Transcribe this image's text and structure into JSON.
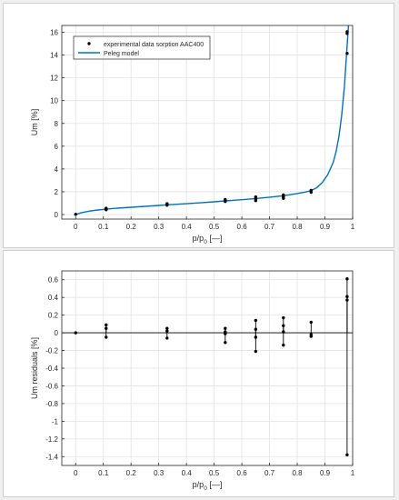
{
  "chart_data": [
    {
      "type": "scatter",
      "xlabel_main": "p/p",
      "xlabel_sub": "0",
      "xlabel_unit": " [—]",
      "ylabel": "Um [%]",
      "xlim": [
        -0.05,
        1.0
      ],
      "ylim": [
        -0.4,
        16.6
      ],
      "xticks": [
        0,
        0.1,
        0.2,
        0.3,
        0.4,
        0.5,
        0.6,
        0.7,
        0.8,
        0.9,
        1
      ],
      "xtick_labels": [
        "0",
        "0.1",
        "0.2",
        "0.3",
        "0.4",
        "0.5",
        "0.6",
        "0.7",
        "0.8",
        "0.9",
        "1"
      ],
      "yticks": [
        0,
        2,
        4,
        6,
        8,
        10,
        12,
        14,
        16
      ],
      "ytick_labels": [
        "0",
        "2",
        "4",
        "6",
        "8",
        "10",
        "12",
        "14",
        "16"
      ],
      "grid": true,
      "legend": {
        "position": "top-left",
        "entries": [
          {
            "label": "experimental data sorption AAC400",
            "marker": "dot",
            "color": "#000000"
          },
          {
            "label": "Peleg model",
            "marker": "line",
            "color": "#0072BD"
          }
        ]
      },
      "series": [
        {
          "name": "experimental data sorption AAC400",
          "points": [
            [
              0,
              0.02
            ],
            [
              0.11,
              0.42
            ],
            [
              0.11,
              0.48
            ],
            [
              0.11,
              0.55
            ],
            [
              0.33,
              0.82
            ],
            [
              0.33,
              0.88
            ],
            [
              0.33,
              0.95
            ],
            [
              0.54,
              1.15
            ],
            [
              0.54,
              1.22
            ],
            [
              0.54,
              1.32
            ],
            [
              0.65,
              1.22
            ],
            [
              0.65,
              1.38
            ],
            [
              0.65,
              1.55
            ],
            [
              0.75,
              1.42
            ],
            [
              0.75,
              1.55
            ],
            [
              0.75,
              1.72
            ],
            [
              0.85,
              1.95
            ],
            [
              0.85,
              2.12
            ],
            [
              0.98,
              14.15
            ],
            [
              0.98,
              15.9
            ],
            [
              0.98,
              16.05
            ]
          ]
        },
        {
          "name": "Peleg model",
          "curve": [
            [
              0,
              0.0
            ],
            [
              0.02,
              0.15
            ],
            [
              0.05,
              0.3
            ],
            [
              0.08,
              0.4
            ],
            [
              0.11,
              0.47
            ],
            [
              0.15,
              0.56
            ],
            [
              0.2,
              0.64
            ],
            [
              0.25,
              0.72
            ],
            [
              0.3,
              0.8
            ],
            [
              0.33,
              0.85
            ],
            [
              0.4,
              0.95
            ],
            [
              0.45,
              1.03
            ],
            [
              0.5,
              1.12
            ],
            [
              0.54,
              1.2
            ],
            [
              0.6,
              1.3
            ],
            [
              0.65,
              1.4
            ],
            [
              0.7,
              1.52
            ],
            [
              0.75,
              1.65
            ],
            [
              0.8,
              1.84
            ],
            [
              0.83,
              1.98
            ],
            [
              0.85,
              2.1
            ],
            [
              0.87,
              2.35
            ],
            [
              0.89,
              2.8
            ],
            [
              0.91,
              3.5
            ],
            [
              0.93,
              4.6
            ],
            [
              0.94,
              5.5
            ],
            [
              0.95,
              6.8
            ],
            [
              0.96,
              8.6
            ],
            [
              0.97,
              11.2
            ],
            [
              0.98,
              14.8
            ],
            [
              0.985,
              16.6
            ]
          ]
        }
      ]
    },
    {
      "type": "scatter",
      "xlabel_main": "p/p",
      "xlabel_sub": "0",
      "xlabel_unit": " [—]",
      "ylabel": "Um residuals [%]",
      "xlim": [
        -0.05,
        1.0
      ],
      "ylim": [
        -1.5,
        0.7
      ],
      "xticks": [
        0,
        0.1,
        0.2,
        0.3,
        0.4,
        0.5,
        0.6,
        0.7,
        0.8,
        0.9,
        1
      ],
      "xtick_labels": [
        "0",
        "0.1",
        "0.2",
        "0.3",
        "0.4",
        "0.5",
        "0.6",
        "0.7",
        "0.8",
        "0.9",
        "1"
      ],
      "yticks": [
        -1.4,
        -1.2,
        -1,
        -0.8,
        -0.6,
        -0.4,
        -0.2,
        0,
        0.2,
        0.4,
        0.6
      ],
      "ytick_labels": [
        "-1.4",
        "-1.2",
        "-1",
        "-0.8",
        "-0.6",
        "-0.4",
        "-0.2",
        "0",
        "0.2",
        "0.4",
        "0.6"
      ],
      "grid": true,
      "baseline": 0,
      "series": [
        {
          "points": [
            [
              0,
              0.0
            ],
            [
              0.11,
              0.09
            ],
            [
              0.11,
              0.05
            ],
            [
              0.11,
              -0.05
            ],
            [
              0.33,
              0.05
            ],
            [
              0.33,
              0.02
            ],
            [
              0.33,
              -0.06
            ],
            [
              0.54,
              0.05
            ],
            [
              0.54,
              0.01
            ],
            [
              0.54,
              -0.01
            ],
            [
              0.54,
              -0.11
            ],
            [
              0.65,
              0.14
            ],
            [
              0.65,
              0.04
            ],
            [
              0.65,
              -0.05
            ],
            [
              0.65,
              -0.21
            ],
            [
              0.75,
              0.17
            ],
            [
              0.75,
              0.08
            ],
            [
              0.75,
              0.01
            ],
            [
              0.75,
              -0.14
            ],
            [
              0.85,
              0.12
            ],
            [
              0.85,
              -0.02
            ],
            [
              0.85,
              -0.04
            ],
            [
              0.98,
              0.61
            ],
            [
              0.98,
              0.41
            ],
            [
              0.98,
              0.37
            ],
            [
              0.98,
              -1.38
            ]
          ]
        }
      ]
    }
  ]
}
